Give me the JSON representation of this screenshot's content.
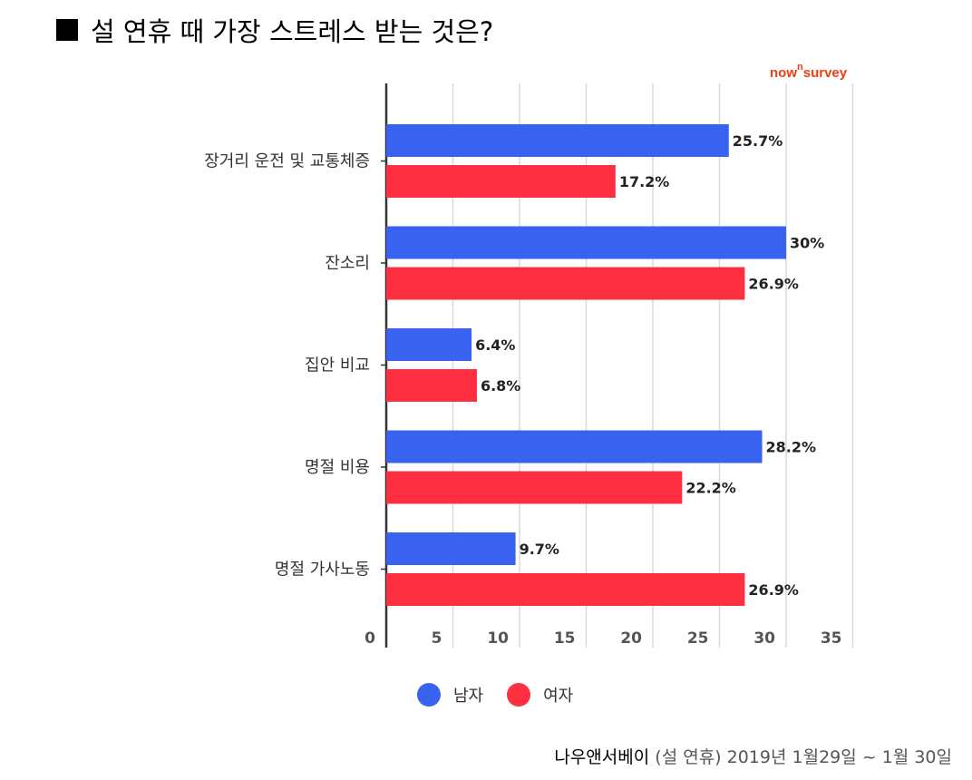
{
  "title": "설 연휴 때 가장 스트레스 받는 것은?",
  "brand": {
    "main": "now",
    "sup": "n",
    "tail": "survey"
  },
  "source": {
    "org": "나우앤서베이",
    "detail": "(설 연휴) 2019년 1월29일 ~ 1월 30일"
  },
  "colors": {
    "male": "#3a62f0",
    "female": "#fd2f40",
    "grid": "#d9d9d9",
    "axis": "#333333"
  },
  "chart_data": {
    "type": "bar",
    "orientation": "horizontal",
    "categories": [
      "장거리 운전 및 교통체증",
      "잔소리",
      "집안 비교",
      "명절 비용",
      "명절 가사노동"
    ],
    "series": [
      {
        "name": "남자",
        "values": [
          25.7,
          30,
          6.4,
          28.2,
          9.7
        ],
        "labels": [
          "25.7%",
          "30%",
          "6.4%",
          "28.2%",
          "9.7%"
        ]
      },
      {
        "name": "여자",
        "values": [
          17.2,
          26.9,
          6.8,
          22.2,
          26.9
        ],
        "labels": [
          "17.2%",
          "26.9%",
          "6.8%",
          "22.2%",
          "26.9%"
        ]
      }
    ],
    "xlim": [
      0,
      35
    ],
    "xticks": [
      "0",
      "5",
      "10",
      "15",
      "20",
      "25",
      "30",
      "35"
    ],
    "grid": true,
    "legend_position": "bottom"
  }
}
